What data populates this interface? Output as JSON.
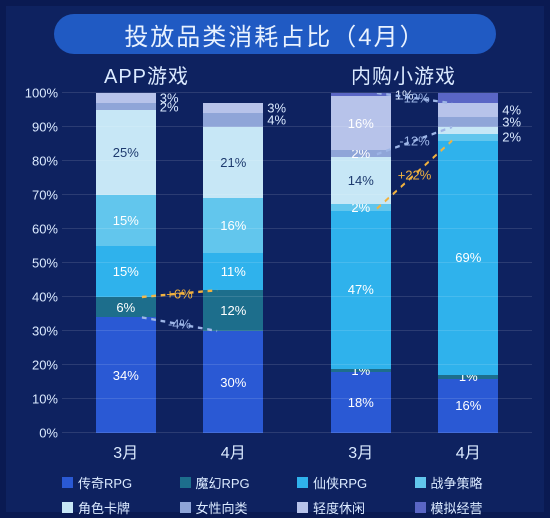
{
  "title": "投放品类消耗占比（4月）",
  "background_outer": "#0a1a52",
  "background_inner": "#0e2260",
  "title_bg": "#205ac3",
  "title_color": "#e9f2ff",
  "axis_text_color": "#dbeaff",
  "grid_color": "rgba(255,255,255,0.12)",
  "yaxis": {
    "min": 0,
    "max": 100,
    "step": 10,
    "labels": [
      "0%",
      "10%",
      "20%",
      "30%",
      "40%",
      "50%",
      "60%",
      "70%",
      "80%",
      "90%",
      "100%"
    ]
  },
  "categories": [
    {
      "key": "legend_rpg",
      "name": "传奇RPG",
      "color": "#2a59d4"
    },
    {
      "key": "magic_rpg",
      "name": "魔幻RPG",
      "color": "#1d6e8c"
    },
    {
      "key": "xianxia_rpg",
      "name": "仙侠RPG",
      "color": "#2fb2ec"
    },
    {
      "key": "war_strategy",
      "name": "战争策略",
      "color": "#62c6ed"
    },
    {
      "key": "card",
      "name": "角色卡牌",
      "color": "#c7e7f6"
    },
    {
      "key": "female",
      "name": "女性向类",
      "color": "#8fa5d8"
    },
    {
      "key": "casual",
      "name": "轻度休闲",
      "color": "#b7c3ea"
    },
    {
      "key": "sim_biz",
      "name": "模拟经营",
      "color": "#5a66c5"
    }
  ],
  "panels": [
    {
      "subtitle": "APP游戏",
      "bars": [
        {
          "x": "3月",
          "segments": [
            {
              "cat": "legend_rpg",
              "value": 34,
              "label": "34%"
            },
            {
              "cat": "magic_rpg",
              "value": 6,
              "label": "6%"
            },
            {
              "cat": "xianxia_rpg",
              "value": 15,
              "label": "15%"
            },
            {
              "cat": "war_strategy",
              "value": 15,
              "label": "15%"
            },
            {
              "cat": "card",
              "value": 25,
              "label": "25%"
            },
            {
              "cat": "female",
              "value": 2,
              "label": "2%",
              "label_side": "right"
            },
            {
              "cat": "casual",
              "value": 3,
              "label": "3%",
              "label_side": "right"
            }
          ]
        },
        {
          "x": "4月",
          "segments": [
            {
              "cat": "legend_rpg",
              "value": 30,
              "label": "30%"
            },
            {
              "cat": "magic_rpg",
              "value": 12,
              "label": "12%"
            },
            {
              "cat": "xianxia_rpg",
              "value": 11,
              "label": "11%"
            },
            {
              "cat": "war_strategy",
              "value": 16,
              "label": "16%"
            },
            {
              "cat": "card",
              "value": 21,
              "label": "21%"
            },
            {
              "cat": "female",
              "value": 4,
              "label": "4%",
              "label_side": "right"
            },
            {
              "cat": "casual",
              "value": 3,
              "label": "3%",
              "label_side": "right"
            }
          ]
        }
      ],
      "callouts": [
        {
          "text": "-4%",
          "color": "#9db5e6",
          "between_cat": "legend_rpg"
        },
        {
          "text": "+6%",
          "color": "#f2b23e",
          "between_cat": "magic_rpg"
        }
      ]
    },
    {
      "subtitle": "内购小游戏",
      "bars": [
        {
          "x": "3月",
          "segments": [
            {
              "cat": "legend_rpg",
              "value": 18,
              "label": "18%"
            },
            {
              "cat": "magic_rpg",
              "value": 1,
              "label": "1%",
              "label_inset": true
            },
            {
              "cat": "xianxia_rpg",
              "value": 47,
              "label": "47%"
            },
            {
              "cat": "war_strategy",
              "value": 2,
              "label": "2%",
              "label_inset": true
            },
            {
              "cat": "card",
              "value": 14,
              "label": "14%"
            },
            {
              "cat": "female",
              "value": 2,
              "label": "2%",
              "label_inset": true
            },
            {
              "cat": "casual",
              "value": 16,
              "label": "16%"
            },
            {
              "cat": "sim_biz",
              "value": 1,
              "label": "1%",
              "label_side": "right"
            }
          ]
        },
        {
          "x": "4月",
          "segments": [
            {
              "cat": "legend_rpg",
              "value": 16,
              "label": "16%"
            },
            {
              "cat": "magic_rpg",
              "value": 1,
              "label": "1%",
              "label_inset": true
            },
            {
              "cat": "xianxia_rpg",
              "value": 69,
              "label": "69%"
            },
            {
              "cat": "war_strategy",
              "value": 2,
              "label": "2%",
              "label_side": "right"
            },
            {
              "cat": "card",
              "value": 2,
              "label": "",
              "label_hidden": true
            },
            {
              "cat": "female",
              "value": 3,
              "label": "3%",
              "label_side": "right"
            },
            {
              "cat": "casual",
              "value": 4,
              "label": "4%",
              "label_side": "right"
            },
            {
              "cat": "sim_biz",
              "value": 3,
              "label": "",
              "label_hidden": true
            }
          ]
        }
      ],
      "callouts": [
        {
          "text": "+22%",
          "color": "#f2b23e",
          "between_cat": "xianxia_rpg"
        },
        {
          "text": "-12%",
          "color": "#9db5e6",
          "between_cat": "card"
        },
        {
          "text": "-12%",
          "color": "#9db5e6",
          "between_cat": "casual"
        }
      ]
    }
  ]
}
